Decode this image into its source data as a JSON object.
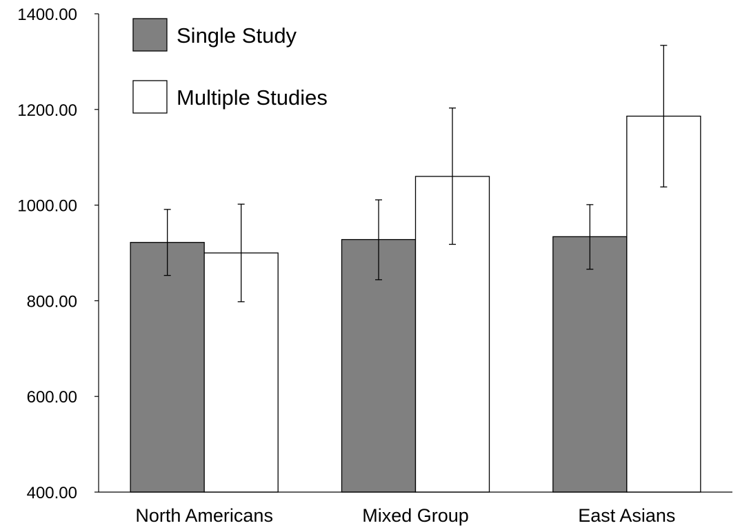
{
  "chart_data": {
    "type": "bar",
    "categories": [
      "North Americans",
      "Mixed Group",
      "East Asians"
    ],
    "series": [
      {
        "name": "Single Study",
        "values": [
          922,
          928,
          934
        ],
        "error": [
          [
            853,
            991
          ],
          [
            844,
            1011
          ],
          [
            866,
            1001
          ]
        ],
        "color": "#808080"
      },
      {
        "name": "Multiple Studies",
        "values": [
          900,
          1060,
          1186
        ],
        "error": [
          [
            798,
            1002
          ],
          [
            918,
            1203
          ],
          [
            1038,
            1334
          ]
        ],
        "color": "#ffffff"
      }
    ],
    "ylim": [
      400,
      1400
    ],
    "yticks": [
      "400.00",
      "600.00",
      "800.00",
      "1000.00",
      "1200.00",
      "1400.00"
    ],
    "title": "",
    "xlabel": "",
    "ylabel": "",
    "grid": false,
    "legend_position": "top-left"
  }
}
